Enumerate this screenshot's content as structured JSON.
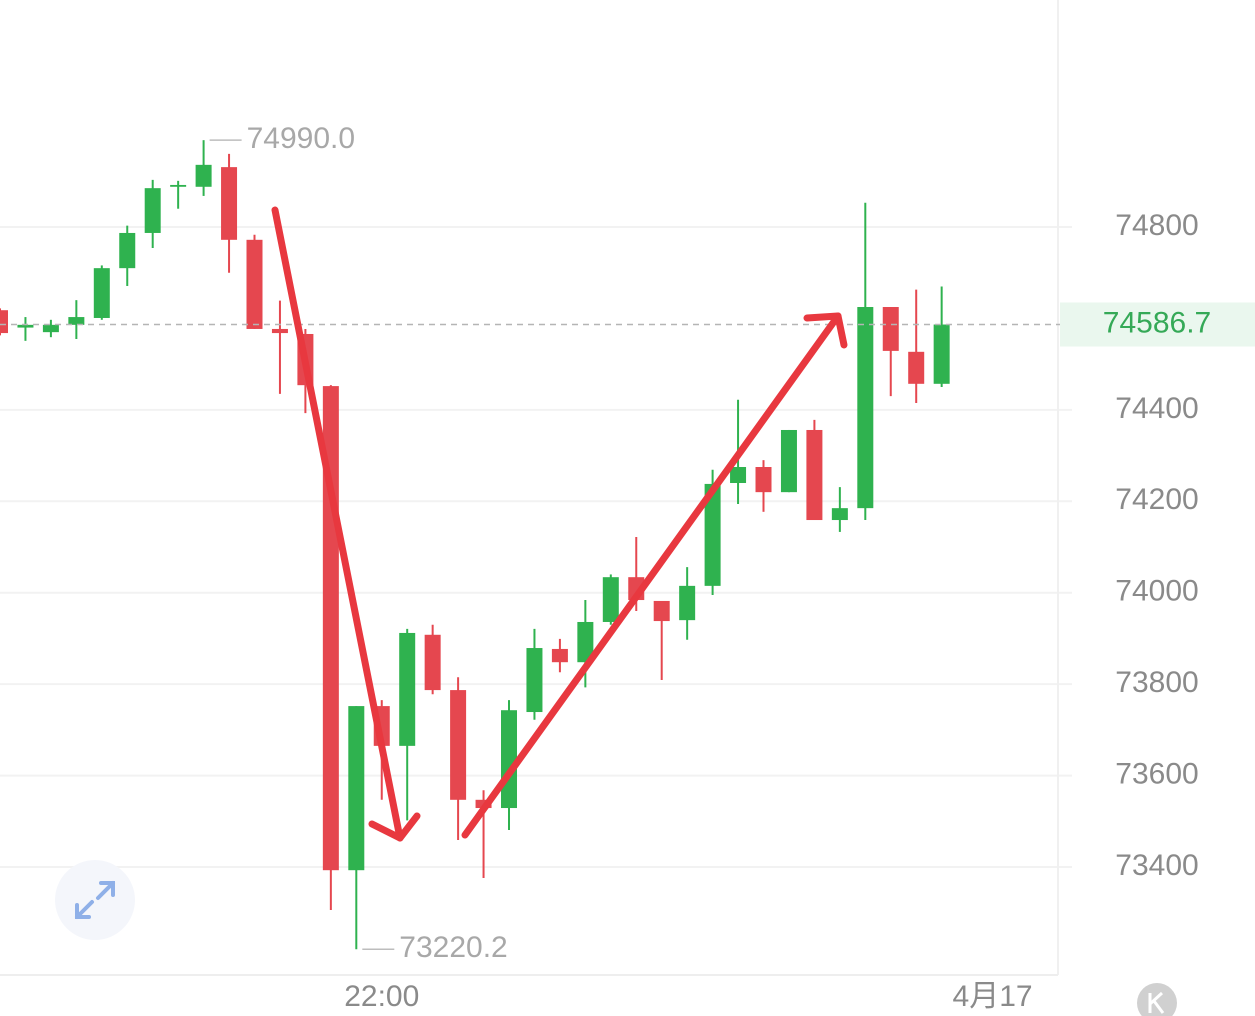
{
  "chart_data": {
    "type": "candlestick",
    "open": [
      74618,
      74580,
      74570,
      74586,
      74601,
      74710,
      74787,
      74888,
      74888,
      74931,
      74772,
      74577,
      74566,
      74452,
      73393,
      73752,
      73665,
      73908,
      73787,
      73547,
      73529,
      73739,
      73877,
      73848,
      73936,
      74034,
      73982,
      73940,
      74015,
      74240,
      74275,
      74220,
      74356,
      74159,
      74185,
      74625,
      74527,
      74457
    ],
    "high": [
      74622,
      74603,
      74597,
      74640,
      74716,
      74803,
      74903,
      74901,
      74990,
      74960,
      74783,
      74639,
      74577,
      74454,
      73752,
      73765,
      73921,
      73930,
      73815,
      73568,
      73765,
      73921,
      73899,
      73984,
      74040,
      74122,
      73982,
      74056,
      74269,
      74422,
      74290,
      74356,
      74378,
      74231,
      74853,
      74625,
      74663,
      74670
    ],
    "low": [
      74563,
      74551,
      74559,
      74555,
      74597,
      74671,
      74754,
      74840,
      74868,
      74700,
      74577,
      74435,
      74393,
      73306,
      73220.2,
      73547,
      73502,
      73778,
      73459,
      73376,
      73481,
      73722,
      73826,
      73793,
      73930,
      73960,
      73809,
      73897,
      73995,
      74194,
      74177,
      74220,
      74159,
      74133,
      74159,
      74430,
      74415,
      74450
    ],
    "close": [
      74568,
      74586,
      74586,
      74603,
      74710,
      74787,
      74885,
      74892,
      74936,
      74772,
      74577,
      74568,
      74454,
      73393,
      73752,
      73665,
      73912,
      73787,
      73547,
      73529,
      73743,
      73879,
      73848,
      73936,
      74034,
      73984,
      73938,
      74015,
      74238,
      74275,
      74220,
      74356,
      74159,
      74185,
      74625,
      74529,
      74457,
      74586.7
    ],
    "up_color": "#2fb24f",
    "down_color": "#e5474f",
    "xlim": [
      0,
      41.65
    ],
    "xticks": [
      {
        "value": 15,
        "label": "22:00"
      },
      {
        "value": 39,
        "label": "4月17"
      }
    ],
    "ylim": [
      73163.75,
      75296.6
    ],
    "yticks": [
      73400,
      73600,
      73800,
      74000,
      74200,
      74400,
      74800
    ],
    "grid": true,
    "high_marker": {
      "value": 74990,
      "label": "74990.0"
    },
    "low_marker": 73220.2,
    "last_price": 74586.7
  }
}
